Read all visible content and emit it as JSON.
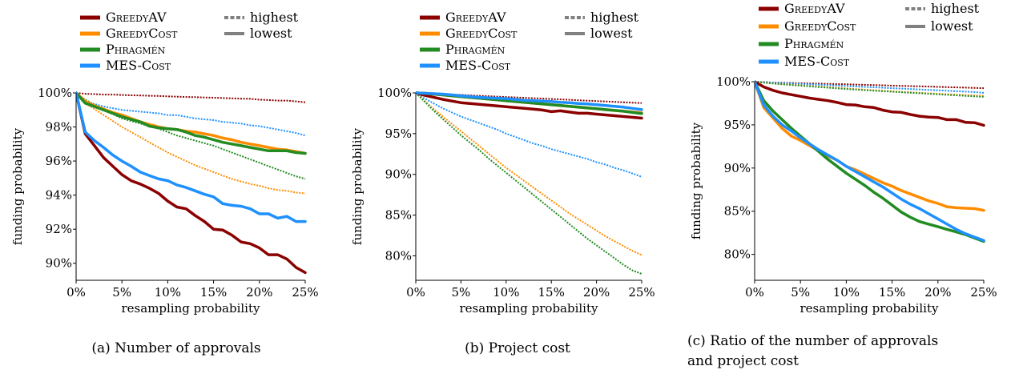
{
  "colors": {
    "greedyav": "#8b0000",
    "greedycost": "#ff8c00",
    "phragmen": "#228b22",
    "mescost": "#1e90ff",
    "style_swatch": "#808080",
    "axis": "#000000"
  },
  "legend": {
    "methods": [
      "GreedyAV",
      "GreedyCost",
      "Phragmén",
      "MES-Cost"
    ],
    "styles": [
      "highest",
      "lowest"
    ]
  },
  "chart_data": [
    {
      "type": "line",
      "caption": "(a) Number of approvals",
      "xlabel": "resampling probability",
      "ylabel": "funding probability",
      "xlim": [
        0,
        25
      ],
      "ylim": [
        89,
        100
      ],
      "xticks": [
        0,
        5,
        10,
        15,
        20,
        25
      ],
      "xtick_labels": [
        "0%",
        "5%",
        "10%",
        "15%",
        "20%",
        "25%"
      ],
      "yticks": [
        90,
        92,
        94,
        96,
        98,
        100
      ],
      "ytick_labels": [
        "90%",
        "92%",
        "94%",
        "96%",
        "98%",
        "100%"
      ],
      "grid": false,
      "legend_position": "top",
      "x": [
        0,
        1,
        2,
        3,
        4,
        5,
        6,
        7,
        8,
        9,
        10,
        11,
        12,
        13,
        14,
        15,
        16,
        17,
        18,
        19,
        20,
        21,
        22,
        23,
        24,
        25
      ],
      "series": [
        {
          "name": "GreedyAV",
          "style": "lowest",
          "values": [
            100,
            97.6,
            96.9,
            96.2,
            95.7,
            95.2,
            94.85,
            94.65,
            94.4,
            94.1,
            93.65,
            93.3,
            93.2,
            92.8,
            92.45,
            92.0,
            91.95,
            91.65,
            91.25,
            91.15,
            90.9,
            90.5,
            90.5,
            90.25,
            89.75,
            89.45
          ]
        },
        {
          "name": "GreedyCost",
          "style": "lowest",
          "values": [
            100,
            99.5,
            99.25,
            99.05,
            98.85,
            98.7,
            98.5,
            98.3,
            98.15,
            98.0,
            97.9,
            97.85,
            97.75,
            97.7,
            97.6,
            97.5,
            97.35,
            97.25,
            97.1,
            97.0,
            96.9,
            96.8,
            96.7,
            96.65,
            96.55,
            96.45
          ]
        },
        {
          "name": "Phragmén",
          "style": "lowest",
          "values": [
            100,
            99.4,
            99.2,
            99.0,
            98.8,
            98.6,
            98.45,
            98.3,
            98.05,
            97.95,
            97.9,
            97.85,
            97.7,
            97.5,
            97.4,
            97.25,
            97.1,
            97.0,
            96.9,
            96.8,
            96.7,
            96.6,
            96.6,
            96.6,
            96.5,
            96.45
          ]
        },
        {
          "name": "MES-Cost",
          "style": "lowest",
          "values": [
            100,
            97.7,
            97.2,
            96.8,
            96.35,
            96.0,
            95.7,
            95.35,
            95.15,
            94.95,
            94.85,
            94.6,
            94.45,
            94.25,
            94.05,
            93.9,
            93.5,
            93.4,
            93.35,
            93.2,
            92.9,
            92.9,
            92.65,
            92.75,
            92.45,
            92.45
          ]
        },
        {
          "name": "GreedyAV",
          "style": "highest",
          "values": [
            100,
            99.95,
            99.93,
            99.9,
            99.9,
            99.88,
            99.86,
            99.85,
            99.83,
            99.82,
            99.8,
            99.78,
            99.76,
            99.75,
            99.73,
            99.72,
            99.7,
            99.68,
            99.66,
            99.65,
            99.6,
            99.58,
            99.55,
            99.55,
            99.5,
            99.45
          ]
        },
        {
          "name": "MES-Cost",
          "style": "highest",
          "values": [
            100,
            99.5,
            99.35,
            99.2,
            99.1,
            99.0,
            98.95,
            98.9,
            98.85,
            98.8,
            98.7,
            98.7,
            98.6,
            98.5,
            98.45,
            98.4,
            98.3,
            98.25,
            98.2,
            98.1,
            98.05,
            97.95,
            97.85,
            97.75,
            97.65,
            97.5
          ]
        },
        {
          "name": "GreedyCost",
          "style": "highest",
          "values": [
            100,
            99.4,
            99.05,
            98.7,
            98.35,
            98.0,
            97.7,
            97.4,
            97.1,
            96.8,
            96.5,
            96.25,
            96.0,
            95.75,
            95.55,
            95.35,
            95.15,
            94.95,
            94.8,
            94.65,
            94.55,
            94.4,
            94.3,
            94.25,
            94.15,
            94.1
          ]
        },
        {
          "name": "Phragmén",
          "style": "highest",
          "values": [
            100,
            99.6,
            99.3,
            99.0,
            98.75,
            98.5,
            98.35,
            98.2,
            98.05,
            97.9,
            97.7,
            97.5,
            97.35,
            97.2,
            97.05,
            96.9,
            96.7,
            96.5,
            96.3,
            96.1,
            95.9,
            95.7,
            95.5,
            95.3,
            95.1,
            94.95
          ]
        }
      ]
    },
    {
      "type": "line",
      "caption": "(b) Project cost",
      "xlabel": "resampling probability",
      "ylabel": "funding probability",
      "xlim": [
        0,
        25
      ],
      "ylim": [
        77,
        100
      ],
      "xticks": [
        0,
        5,
        10,
        15,
        20,
        25
      ],
      "xtick_labels": [
        "0%",
        "5%",
        "10%",
        "15%",
        "20%",
        "25%"
      ],
      "yticks": [
        80,
        85,
        90,
        95,
        100
      ],
      "ytick_labels": [
        "80%",
        "85%",
        "90%",
        "95%",
        "100%"
      ],
      "grid": false,
      "legend_position": "top",
      "x": [
        0,
        1,
        2,
        3,
        4,
        5,
        6,
        7,
        8,
        9,
        10,
        11,
        12,
        13,
        14,
        15,
        16,
        17,
        18,
        19,
        20,
        21,
        22,
        23,
        24,
        25
      ],
      "series": [
        {
          "name": "GreedyAV",
          "style": "lowest",
          "values": [
            100,
            99.7,
            99.45,
            99.2,
            99.0,
            98.8,
            98.7,
            98.6,
            98.5,
            98.4,
            98.3,
            98.2,
            98.1,
            98.0,
            97.9,
            97.7,
            97.8,
            97.65,
            97.5,
            97.5,
            97.4,
            97.3,
            97.2,
            97.1,
            97.0,
            96.9
          ]
        },
        {
          "name": "GreedyCost",
          "style": "lowest",
          "values": [
            100,
            99.95,
            99.85,
            99.75,
            99.65,
            99.55,
            99.45,
            99.35,
            99.25,
            99.15,
            99.05,
            98.95,
            98.85,
            98.75,
            98.65,
            98.55,
            98.45,
            98.35,
            98.25,
            98.15,
            98.05,
            97.95,
            97.85,
            97.75,
            97.65,
            97.55
          ]
        },
        {
          "name": "Phragmén",
          "style": "lowest",
          "values": [
            100,
            99.95,
            99.85,
            99.75,
            99.65,
            99.55,
            99.45,
            99.35,
            99.25,
            99.15,
            99.05,
            98.95,
            98.85,
            98.75,
            98.65,
            98.55,
            98.45,
            98.35,
            98.25,
            98.15,
            98.05,
            97.95,
            97.85,
            97.75,
            97.6,
            97.45
          ]
        },
        {
          "name": "MES-Cost",
          "style": "lowest",
          "values": [
            100,
            99.95,
            99.9,
            99.85,
            99.75,
            99.65,
            99.55,
            99.45,
            99.4,
            99.35,
            99.3,
            99.2,
            99.1,
            99.05,
            99.0,
            98.95,
            98.85,
            98.8,
            98.7,
            98.65,
            98.55,
            98.45,
            98.35,
            98.25,
            98.1,
            97.95
          ]
        },
        {
          "name": "GreedyAV",
          "style": "highest",
          "values": [
            100,
            99.95,
            99.9,
            99.85,
            99.8,
            99.75,
            99.7,
            99.65,
            99.6,
            99.55,
            99.5,
            99.45,
            99.4,
            99.35,
            99.3,
            99.25,
            99.2,
            99.15,
            99.1,
            99.05,
            99.0,
            98.95,
            98.9,
            98.85,
            98.8,
            98.75
          ]
        },
        {
          "name": "MES-Cost",
          "style": "highest",
          "values": [
            100,
            99.3,
            98.7,
            98.1,
            97.6,
            97.1,
            96.7,
            96.3,
            95.9,
            95.5,
            95.0,
            94.6,
            94.2,
            93.8,
            93.5,
            93.1,
            92.8,
            92.5,
            92.2,
            91.9,
            91.5,
            91.2,
            90.8,
            90.5,
            90.1,
            89.7
          ]
        },
        {
          "name": "GreedyCost",
          "style": "highest",
          "values": [
            100,
            99.0,
            98.0,
            97.1,
            96.2,
            95.3,
            94.4,
            93.5,
            92.6,
            91.7,
            90.8,
            90.0,
            89.2,
            88.4,
            87.6,
            86.8,
            86.0,
            85.2,
            84.5,
            83.8,
            83.1,
            82.4,
            81.8,
            81.2,
            80.6,
            80.1
          ]
        },
        {
          "name": "Phragmén",
          "style": "highest",
          "values": [
            100,
            98.9,
            97.8,
            96.8,
            95.8,
            94.8,
            93.9,
            93.0,
            92.0,
            91.1,
            90.2,
            89.3,
            88.4,
            87.5,
            86.6,
            85.7,
            84.8,
            83.9,
            83.0,
            82.1,
            81.3,
            80.5,
            79.7,
            78.9,
            78.2,
            77.8
          ]
        }
      ]
    },
    {
      "type": "line",
      "caption_lines": [
        "(c) Ratio of the number of approvals",
        "and project cost"
      ],
      "xlabel": "resampling probability",
      "ylabel": "funding probability",
      "xlim": [
        0,
        25
      ],
      "ylim": [
        77,
        100
      ],
      "xticks": [
        0,
        5,
        10,
        15,
        20,
        25
      ],
      "xtick_labels": [
        "0%",
        "5%",
        "10%",
        "15%",
        "20%",
        "25%"
      ],
      "yticks": [
        80,
        85,
        90,
        95,
        100
      ],
      "ytick_labels": [
        "80%",
        "85%",
        "90%",
        "95%",
        "100%"
      ],
      "grid": false,
      "legend_position": "top",
      "x": [
        0,
        1,
        2,
        3,
        4,
        5,
        6,
        7,
        8,
        9,
        10,
        11,
        12,
        13,
        14,
        15,
        16,
        17,
        18,
        19,
        20,
        21,
        22,
        23,
        24,
        25
      ],
      "series": [
        {
          "name": "GreedyAV",
          "style": "lowest",
          "values": [
            100,
            99.4,
            99.0,
            98.7,
            98.5,
            98.3,
            98.1,
            97.95,
            97.8,
            97.6,
            97.35,
            97.3,
            97.1,
            97.0,
            96.7,
            96.5,
            96.45,
            96.2,
            96.0,
            95.9,
            95.85,
            95.6,
            95.6,
            95.3,
            95.25,
            94.95
          ]
        },
        {
          "name": "GreedyCost",
          "style": "lowest",
          "values": [
            100,
            97.0,
            95.8,
            94.6,
            93.7,
            93.2,
            92.6,
            92.0,
            91.4,
            90.9,
            90.2,
            89.8,
            89.3,
            88.8,
            88.3,
            87.9,
            87.4,
            87.0,
            86.6,
            86.2,
            85.9,
            85.5,
            85.4,
            85.35,
            85.3,
            85.1
          ]
        },
        {
          "name": "Phragmén",
          "style": "lowest",
          "values": [
            100,
            97.8,
            96.6,
            95.6,
            94.6,
            93.7,
            92.8,
            91.9,
            91.0,
            90.2,
            89.4,
            88.7,
            88.0,
            87.2,
            86.5,
            85.7,
            84.9,
            84.3,
            83.8,
            83.5,
            83.2,
            82.9,
            82.6,
            82.3,
            81.9,
            81.5
          ]
        },
        {
          "name": "MES-Cost",
          "style": "lowest",
          "values": [
            100,
            97.3,
            96.0,
            95.0,
            94.3,
            93.5,
            92.8,
            92.1,
            91.5,
            90.9,
            90.2,
            89.6,
            89.0,
            88.4,
            87.8,
            87.1,
            86.4,
            85.8,
            85.3,
            84.7,
            84.1,
            83.5,
            82.9,
            82.4,
            82.0,
            81.6
          ]
        },
        {
          "name": "GreedyAV",
          "style": "highest",
          "values": [
            100,
            99.95,
            99.9,
            99.88,
            99.85,
            99.82,
            99.8,
            99.78,
            99.75,
            99.72,
            99.7,
            99.67,
            99.64,
            99.61,
            99.58,
            99.55,
            99.52,
            99.49,
            99.46,
            99.43,
            99.4,
            99.37,
            99.34,
            99.31,
            99.28,
            99.25
          ]
        },
        {
          "name": "MES-Cost",
          "style": "highest",
          "values": [
            100,
            99.95,
            99.9,
            99.85,
            99.8,
            99.75,
            99.7,
            99.65,
            99.6,
            99.55,
            99.5,
            99.45,
            99.4,
            99.35,
            99.3,
            99.25,
            99.2,
            99.15,
            99.1,
            99.05,
            99.0,
            98.95,
            98.9,
            98.85,
            98.8,
            98.7
          ]
        },
        {
          "name": "GreedyCost",
          "style": "highest",
          "values": [
            100,
            99.9,
            99.8,
            99.72,
            99.65,
            99.58,
            99.5,
            99.43,
            99.36,
            99.29,
            99.22,
            99.15,
            99.08,
            99.01,
            98.95,
            98.89,
            98.83,
            98.77,
            98.71,
            98.65,
            98.6,
            98.55,
            98.5,
            98.45,
            98.4,
            98.35
          ]
        },
        {
          "name": "Phragmén",
          "style": "highest",
          "values": [
            100,
            99.9,
            99.8,
            99.7,
            99.62,
            99.54,
            99.46,
            99.38,
            99.3,
            99.23,
            99.16,
            99.09,
            99.02,
            98.96,
            98.9,
            98.84,
            98.78,
            98.72,
            98.66,
            98.6,
            98.54,
            98.48,
            98.42,
            98.36,
            98.3,
            98.25
          ]
        }
      ]
    }
  ]
}
